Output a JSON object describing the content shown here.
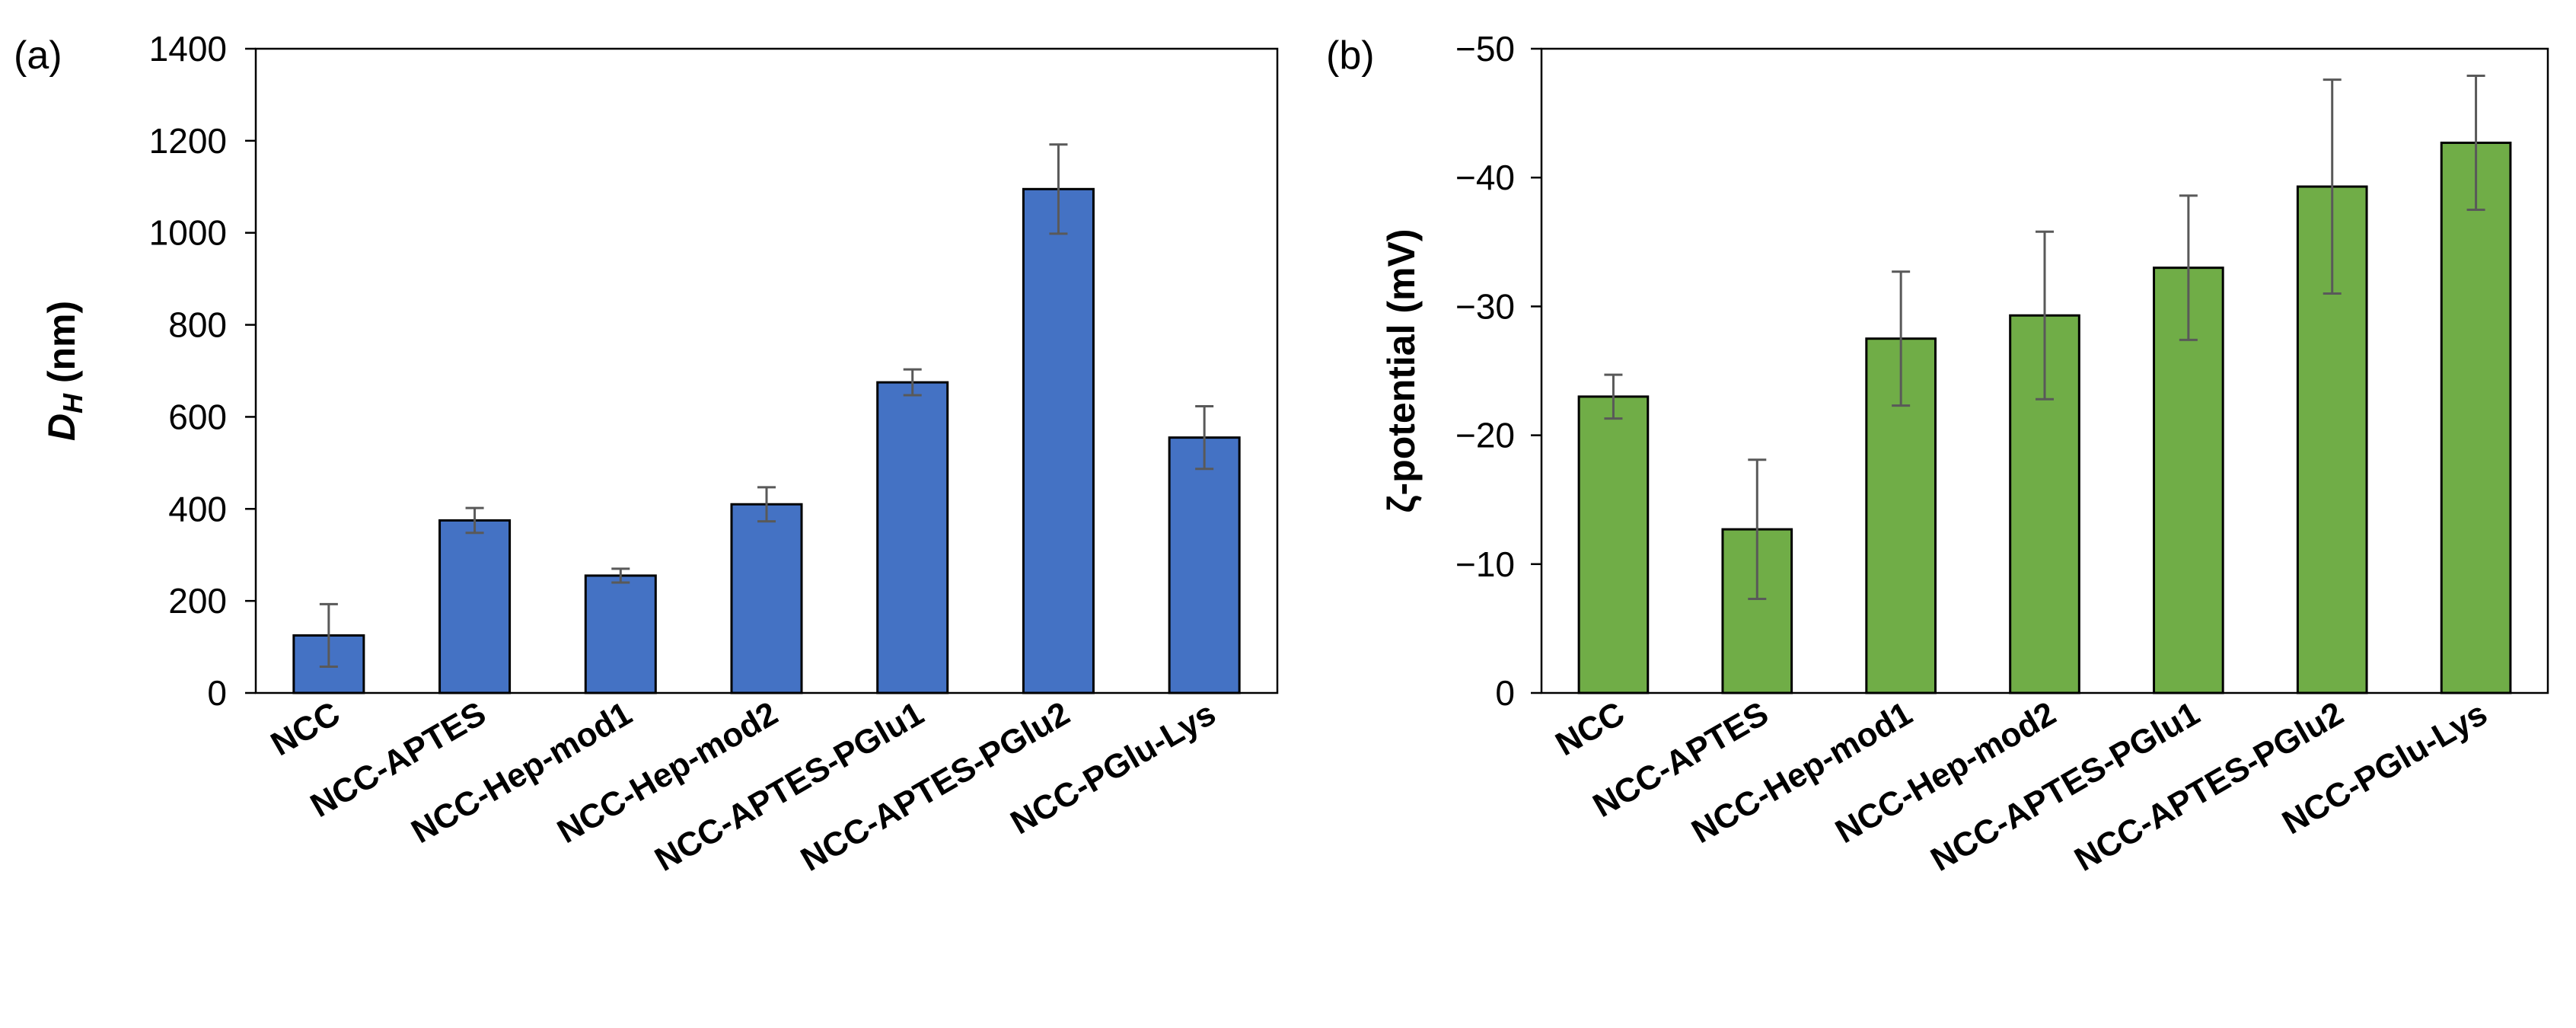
{
  "chart_data": [
    {
      "type": "bar",
      "panel_label": "(a)",
      "ylabel_main": "D",
      "ylabel_sub": "H",
      "ylabel_unit": " (nm)",
      "categories": [
        "NCC",
        "NCC-APTES",
        "NCC-Hep-mod1",
        "NCC-Hep-mod2",
        "NCC-APTES-PGlu1",
        "NCC-APTES-PGlu2",
        "NCC-PGlu-Lys"
      ],
      "values": [
        125,
        375,
        255,
        410,
        675,
        1095,
        555
      ],
      "errors": [
        68,
        27,
        15,
        37,
        28,
        97,
        68
      ],
      "ylim": [
        0,
        1400
      ],
      "ticks": [
        0,
        200,
        400,
        600,
        800,
        1000,
        1200,
        1400
      ],
      "tick_labels": [
        "0",
        "200",
        "400",
        "600",
        "800",
        "1000",
        "1200",
        "1400"
      ],
      "color": "#4472C4"
    },
    {
      "type": "bar",
      "panel_label": "(b)",
      "ylabel": "ζ-potential (mV)",
      "axis_inverted": true,
      "categories": [
        "NCC",
        "NCC-APTES",
        "NCC-Hep-mod1",
        "NCC-Hep-mod2",
        "NCC-APTES-PGlu1",
        "NCC-APTES-PGlu2",
        "NCC-PGlu-Lys"
      ],
      "values": [
        -23.0,
        -12.7,
        -27.5,
        -29.3,
        -33.0,
        -39.3,
        -42.7
      ],
      "errors": [
        1.7,
        5.4,
        5.2,
        6.5,
        5.6,
        8.3,
        5.2
      ],
      "ylim": [
        0,
        -50
      ],
      "ticks": [
        0,
        -10,
        -20,
        -30,
        -40,
        -50
      ],
      "tick_labels": [
        "0",
        "−10",
        "−20",
        "−30",
        "−40",
        "−50"
      ],
      "color": "#70AD47"
    }
  ]
}
